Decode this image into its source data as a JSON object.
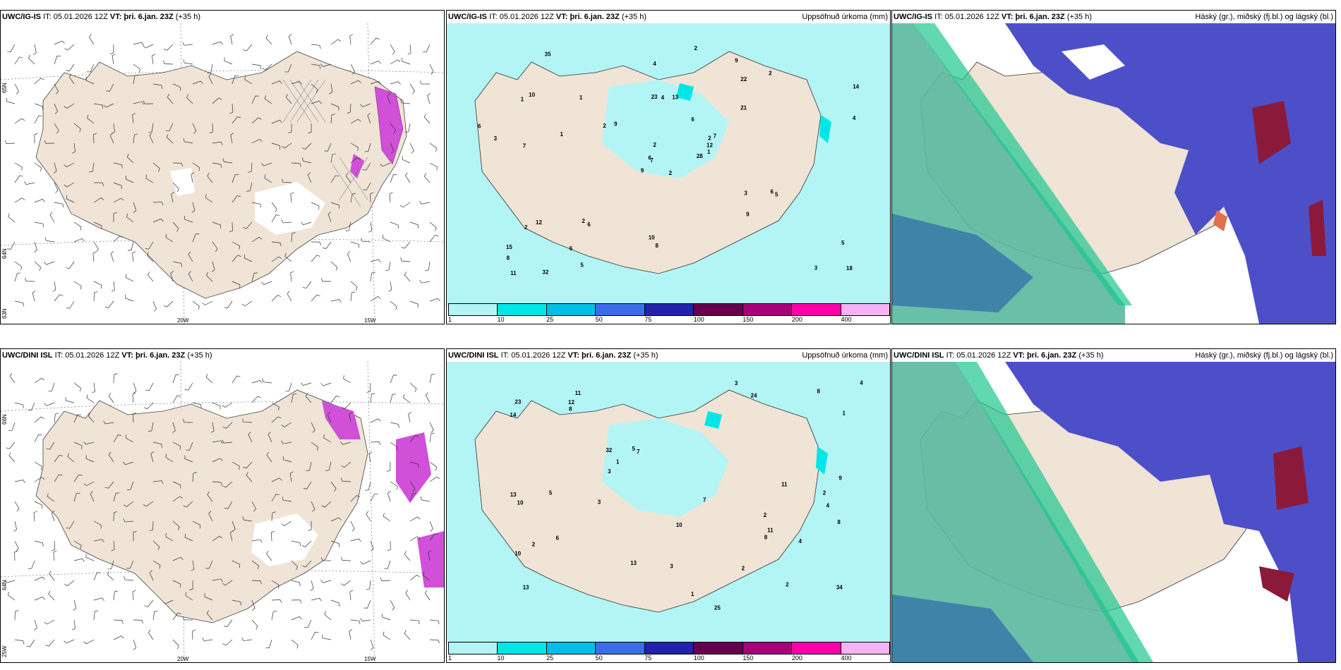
{
  "panels": [
    {
      "model": "UWC/IG-IS",
      "it_label": "IT:",
      "it": "05.01.2026 12Z",
      "vt_label": "VT:",
      "vt": "þri. 6.jan. 23Z",
      "lead": "(+35 h)",
      "right_title": ""
    },
    {
      "model": "UWC/IG-IS",
      "it_label": "IT:",
      "it": "05.01.2026 12Z",
      "vt_label": "VT:",
      "vt": "þri. 6.jan. 23Z",
      "lead": "(+35 h)",
      "right_title": "Uppsöfnuð úrkoma (mm)"
    },
    {
      "model": "UWC/IG-IS",
      "it_label": "IT:",
      "it": "05.01.2026 12Z",
      "vt_label": "VT:",
      "vt": "þri. 6.jan. 23Z",
      "lead": "(+35 h)",
      "right_title": "Háský (gr.), miðský (fj.bl.) og lágský (bl.)"
    },
    {
      "model": "UWC/DINI ISL",
      "it_label": "IT:",
      "it": "05.01.2026 12Z",
      "vt_label": "VT:",
      "vt": "þri. 6.jan. 23Z",
      "lead": "(+35 h)",
      "right_title": ""
    },
    {
      "model": "UWC/DINI ISL",
      "it_label": "IT:",
      "it": "05.01.2026 12Z",
      "vt_label": "VT:",
      "vt": "þri. 6.jan. 23Z",
      "lead": "(+35 h)",
      "right_title": "Uppsöfnuð úrkoma (mm)"
    },
    {
      "model": "UWC/DINI ISL",
      "it_label": "IT:",
      "it": "05.01.2026 12Z",
      "vt_label": "VT:",
      "vt": "þri. 6.jan. 23Z",
      "lead": "(+35 h)",
      "right_title": "Háský (gr.), miðský (fj.bl.) og lágský (bl.)"
    }
  ],
  "axis_labels": {
    "lat66": "66N",
    "lat64": "64N",
    "lat63": "63N",
    "lon20": "20W",
    "lon15": "15W",
    "lon25": "25W",
    "lat65": "65N"
  },
  "colorbar": {
    "labels": [
      "1",
      "10",
      "25",
      "50",
      "75",
      "100",
      "150",
      "200",
      "400"
    ],
    "colors": [
      "#b3f5f5",
      "#00e6e6",
      "#00bfe6",
      "#3b6ee6",
      "#2222aa",
      "#66004d",
      "#a8007a",
      "#ff00aa",
      "#f5b3f5"
    ]
  },
  "precip_top": [
    "2",
    "1",
    "7",
    "15",
    "2",
    "6",
    "9",
    "13",
    "22",
    "28",
    "35",
    "18",
    "7",
    "14",
    "9",
    "21",
    "32",
    "23",
    "6",
    "12",
    "9",
    "8",
    "6",
    "4",
    "7",
    "5",
    "10",
    "4",
    "3",
    "3",
    "4",
    "6",
    "10",
    "2",
    "1",
    "2",
    "2",
    "3",
    "5",
    "6",
    "2",
    "2",
    "1",
    "9",
    "5",
    "6",
    "12",
    "11",
    "8",
    "1",
    "2"
  ],
  "precip_bottom": [
    "2",
    "4",
    "13",
    "11",
    "7",
    "2",
    "10",
    "24",
    "32",
    "25",
    "14",
    "13",
    "23",
    "34",
    "13",
    "9",
    "10",
    "7",
    "5",
    "6",
    "4",
    "8",
    "3",
    "8",
    "3",
    "12",
    "11",
    "10",
    "8",
    "11",
    "1",
    "2",
    "1",
    "3",
    "2",
    "4",
    "8",
    "5",
    "3",
    "2",
    "1"
  ],
  "colors": {
    "land": "#efe4d6",
    "precip_light": "#b3f5f5",
    "precip_med": "#00e6e6",
    "high_cloud": "#5ab8a0",
    "mid_cloud": "#4d4fc9",
    "low_cloud": "#8b1a3a",
    "magenta": "#d050d8"
  }
}
